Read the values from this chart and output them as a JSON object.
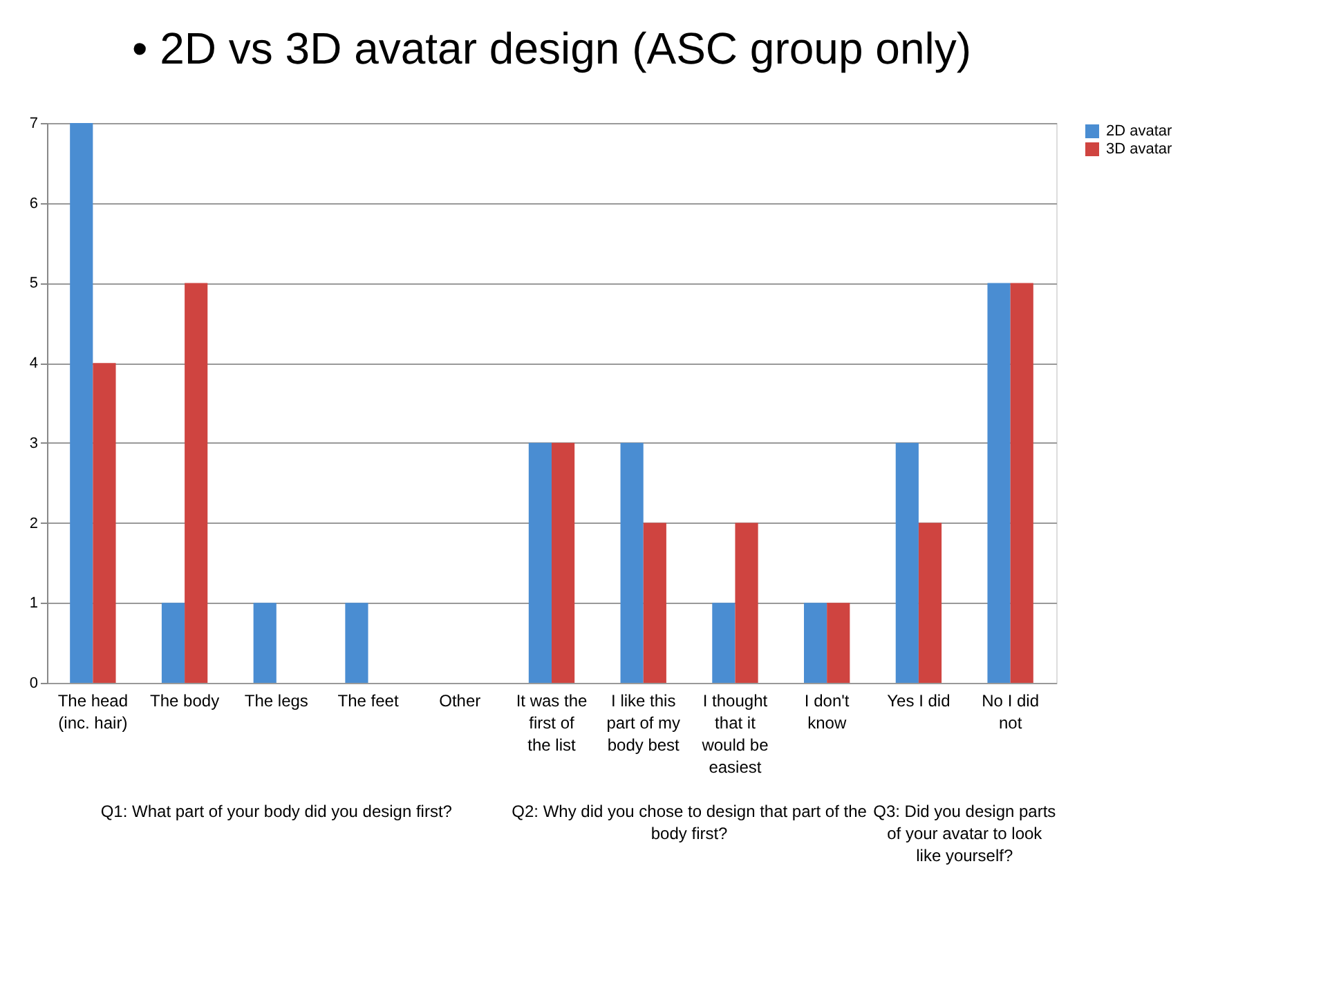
{
  "chart_data": {
    "type": "bar",
    "title": "• 2D vs 3D avatar design (ASC group only)",
    "categories": [
      "The head (inc. hair)",
      "The body",
      "The legs",
      "The feet",
      "Other",
      "It was the first of the list",
      "I like this part of my body best",
      "I thought that it would be easiest",
      "I don't know",
      "Yes I did",
      "No I did not"
    ],
    "series": [
      {
        "name": "2D avatar",
        "color": "#4a8dd2",
        "values": [
          7,
          1,
          1,
          1,
          0,
          3,
          3,
          1,
          1,
          3,
          5
        ]
      },
      {
        "name": "3D avatar",
        "color": "#cf4440",
        "values": [
          4,
          5,
          0,
          0,
          0,
          3,
          2,
          2,
          1,
          2,
          5
        ]
      }
    ],
    "ylim": [
      0,
      7
    ],
    "yticks": [
      0,
      1,
      2,
      3,
      4,
      5,
      6,
      7
    ],
    "grid": "y",
    "legend": "right",
    "annotations": [
      "Q1: What part of your body did you design first?",
      "Q2: Why did you chose to design that part of the body first?",
      "Q3: Did you design parts of your avatar to look like yourself?"
    ]
  }
}
